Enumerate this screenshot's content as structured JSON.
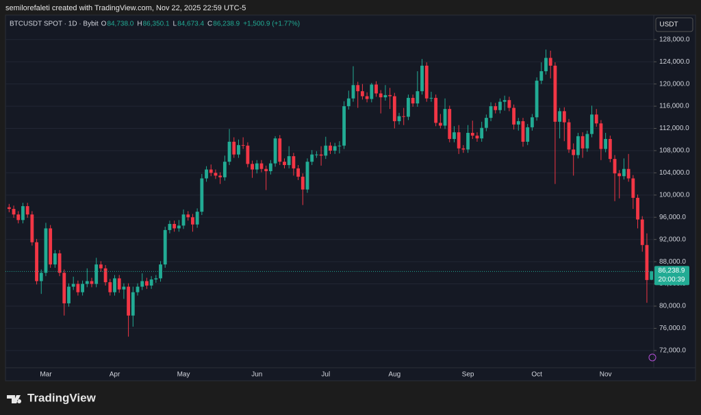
{
  "header": "semilorefaleti created with TradingView.com, Nov 22, 2025 22:59 UTC-5",
  "watermark": "TradingView",
  "chart_data": {
    "type": "candlestick",
    "symbol": "BTCUSDT SPOT · 1D · Bybit",
    "legend": [
      {
        "key": "O",
        "label": "84,738.0"
      },
      {
        "key": "H",
        "label": "86,350.1"
      },
      {
        "key": "L",
        "label": "84,673.4"
      },
      {
        "key": "C",
        "label": "86,238.9"
      }
    ],
    "change": "+1,500.9 (+1.77%)",
    "currency": "USDT",
    "price_label": "86,238.9",
    "countdown": "20:00:39",
    "up_color": "#22ab94",
    "down_color": "#f23645",
    "ylim": [
      68900,
      129700
    ],
    "yticks": [
      {
        "value": 72000,
        "label": "72,000.0"
      },
      {
        "value": 76000,
        "label": "76,000.0"
      },
      {
        "value": 80000,
        "label": "80,000.0"
      },
      {
        "value": 84000,
        "label": "84,000.0"
      },
      {
        "value": 88000,
        "label": "88,000.0"
      },
      {
        "value": 92000,
        "label": "92,000.0"
      },
      {
        "value": 96000,
        "label": "96,000.0"
      },
      {
        "value": 100000,
        "label": "100,000.0"
      },
      {
        "value": 104000,
        "label": "104,000.0"
      },
      {
        "value": 108000,
        "label": "108,000.0"
      },
      {
        "value": 112000,
        "label": "112,000.0"
      },
      {
        "value": 116000,
        "label": "116,000.0"
      },
      {
        "value": 120000,
        "label": "120,000.0"
      },
      {
        "value": 124000,
        "label": "124,000.0"
      },
      {
        "value": 128000,
        "label": "128,000.0"
      }
    ],
    "grid": true,
    "categories": [
      null,
      null,
      null,
      null,
      null,
      null,
      null,
      null,
      "Mar",
      null,
      null,
      null,
      null,
      null,
      null,
      null,
      null,
      null,
      null,
      null,
      null,
      null,
      null,
      "Apr",
      null,
      null,
      null,
      null,
      null,
      null,
      null,
      null,
      null,
      null,
      null,
      null,
      null,
      null,
      "May",
      null,
      null,
      null,
      null,
      null,
      null,
      null,
      null,
      null,
      null,
      null,
      null,
      null,
      null,
      null,
      "Jun",
      null,
      null,
      null,
      null,
      null,
      null,
      null,
      null,
      null,
      null,
      null,
      null,
      null,
      null,
      "Jul",
      null,
      null,
      null,
      null,
      null,
      null,
      null,
      null,
      null,
      null,
      null,
      null,
      null,
      null,
      "Aug",
      null,
      null,
      null,
      null,
      null,
      null,
      null,
      null,
      null,
      null,
      null,
      null,
      null,
      null,
      null,
      "Sep",
      null,
      null,
      null,
      null,
      null,
      null,
      null,
      null,
      null,
      null,
      null,
      null,
      null,
      null,
      "Oct",
      null,
      null,
      null,
      null,
      null,
      null,
      null,
      null,
      null,
      null,
      null,
      null,
      null,
      null,
      "Nov",
      null,
      null,
      null,
      null,
      null,
      null,
      null,
      null,
      null,
      null
    ],
    "open": [
      97800,
      97500,
      96500,
      95500,
      98000,
      96500,
      91500,
      84500,
      86000,
      94000,
      87500,
      89500,
      86000,
      80500,
      83500,
      84000,
      82500,
      84000,
      84500,
      84000,
      87500,
      86800,
      84300,
      82500,
      85000,
      83000,
      83500,
      78300,
      82500,
      83500,
      84500,
      83700,
      84800,
      85000,
      87500,
      93700,
      94800,
      94000,
      94500,
      96500,
      96000,
      94700,
      97000,
      103000,
      104600,
      104000,
      103500,
      103200,
      106000,
      109600,
      107300,
      109000,
      108900,
      105600,
      104600,
      105700,
      104700,
      104300,
      105700,
      110200,
      106000,
      105400,
      107000,
      104800,
      103300,
      101000,
      106000,
      107300,
      107300,
      107100,
      108900,
      108000,
      108800,
      108900,
      116000,
      117400,
      119800,
      118700,
      117800,
      117300,
      119900,
      118300,
      117600,
      118000,
      117800,
      113300,
      114200,
      114100,
      117500,
      116500,
      118700,
      123300,
      117400,
      117500,
      113000,
      112500,
      115500,
      110100,
      111300,
      108400,
      108200,
      111200,
      110700,
      110200,
      112100,
      113900,
      116000,
      115300,
      116800,
      117100,
      115700,
      112700,
      113300,
      109600,
      112200,
      114000,
      120600,
      122300,
      124700,
      123300,
      113200,
      115100,
      113100,
      108200,
      107200,
      110600,
      108400,
      111000,
      114500,
      112900,
      108300,
      110100,
      106500,
      103900,
      103400,
      104700,
      103000,
      99500,
      95600,
      91000,
      84738
    ],
    "high": [
      98400,
      98100,
      97100,
      98600,
      98600,
      97100,
      92100,
      86600,
      95000,
      94600,
      90100,
      90100,
      86600,
      84100,
      85300,
      84600,
      84600,
      86800,
      85100,
      88700,
      88100,
      87400,
      84900,
      85600,
      85600,
      84100,
      84100,
      83500,
      84100,
      85900,
      85100,
      85400,
      85600,
      88100,
      94300,
      95400,
      95400,
      95500,
      97400,
      97100,
      96600,
      97600,
      103800,
      105200,
      105500,
      104600,
      104100,
      107100,
      111900,
      110400,
      110000,
      110400,
      109500,
      106200,
      106300,
      106300,
      105300,
      106300,
      110600,
      110800,
      106600,
      108800,
      107600,
      105400,
      103900,
      106600,
      108100,
      107900,
      108800,
      110500,
      109500,
      109400,
      109700,
      116900,
      118800,
      123200,
      120400,
      120000,
      118500,
      120200,
      120500,
      118900,
      119800,
      119300,
      118400,
      114800,
      115700,
      118100,
      118100,
      122300,
      124500,
      123900,
      118600,
      118100,
      114600,
      117400,
      116100,
      112400,
      112600,
      109000,
      112600,
      113400,
      111300,
      113200,
      114500,
      116700,
      116600,
      117400,
      117900,
      117700,
      116300,
      113900,
      113900,
      112800,
      114600,
      121200,
      123900,
      126200,
      126000,
      123900,
      115700,
      115800,
      113700,
      109300,
      111200,
      111300,
      111600,
      116100,
      115500,
      113500,
      111200,
      110700,
      107200,
      104500,
      106600,
      107400,
      103600,
      100100,
      96200,
      93100,
      86350.1
    ],
    "low": [
      96900,
      95900,
      94900,
      94900,
      95900,
      90900,
      83900,
      82200,
      85400,
      86900,
      86900,
      85400,
      78300,
      79900,
      82900,
      81900,
      81900,
      83400,
      83400,
      83400,
      86200,
      83700,
      81900,
      81900,
      82400,
      81300,
      74500,
      76300,
      81900,
      82900,
      83100,
      83100,
      84200,
      84400,
      86900,
      93100,
      93400,
      93400,
      93900,
      95400,
      93400,
      94100,
      96400,
      102400,
      103400,
      102900,
      102000,
      102600,
      105400,
      106700,
      106700,
      108300,
      105000,
      103100,
      103900,
      104100,
      100900,
      103700,
      105100,
      105400,
      104800,
      104800,
      103500,
      102700,
      98200,
      100400,
      105400,
      106700,
      105300,
      106500,
      107400,
      107400,
      107500,
      108300,
      115400,
      116800,
      115700,
      117200,
      116700,
      116700,
      117700,
      114700,
      117000,
      115500,
      112000,
      112700,
      112600,
      113500,
      115900,
      115900,
      118100,
      116800,
      116800,
      112400,
      112000,
      111900,
      109500,
      109500,
      107400,
      107600,
      107600,
      110100,
      109600,
      109600,
      111500,
      113300,
      114700,
      114700,
      115200,
      115100,
      111800,
      111600,
      108700,
      109000,
      111600,
      113400,
      120000,
      121700,
      121000,
      102000,
      110200,
      109700,
      107600,
      103500,
      106600,
      106700,
      107800,
      110400,
      112300,
      106300,
      107700,
      105900,
      98900,
      99400,
      102800,
      102400,
      97500,
      94000,
      89800,
      80600,
      84673.4
    ],
    "close": [
      97500,
      96500,
      95500,
      98000,
      96500,
      91500,
      84500,
      86000,
      94000,
      87500,
      89500,
      86000,
      80500,
      83500,
      84000,
      82500,
      84000,
      84500,
      84000,
      87500,
      86800,
      84300,
      82500,
      85000,
      83000,
      83500,
      78300,
      82500,
      83500,
      84500,
      83700,
      84800,
      85000,
      87500,
      93700,
      94800,
      94000,
      94500,
      96500,
      96000,
      94700,
      97000,
      103000,
      104600,
      104000,
      103500,
      103200,
      106000,
      109600,
      107300,
      109000,
      108900,
      105600,
      104600,
      105700,
      104700,
      104300,
      105700,
      110200,
      106000,
      105400,
      107000,
      104800,
      103300,
      101000,
      106000,
      107300,
      107300,
      107100,
      108900,
      108000,
      108800,
      108900,
      116000,
      117400,
      119800,
      118700,
      117800,
      117300,
      119900,
      118300,
      117600,
      118000,
      117800,
      113300,
      114200,
      114100,
      117500,
      116500,
      118700,
      123300,
      117400,
      117500,
      113000,
      112500,
      115500,
      110100,
      111300,
      108400,
      108200,
      111200,
      110700,
      110200,
      112100,
      113900,
      116000,
      115300,
      116800,
      117100,
      115700,
      112700,
      113300,
      109600,
      112200,
      114000,
      120600,
      122300,
      124700,
      123300,
      113200,
      115100,
      113100,
      108200,
      107200,
      110600,
      108400,
      111000,
      114500,
      112900,
      108300,
      110100,
      106500,
      103900,
      103400,
      104700,
      103000,
      99500,
      95600,
      91000,
      84700,
      86238.9
    ]
  }
}
